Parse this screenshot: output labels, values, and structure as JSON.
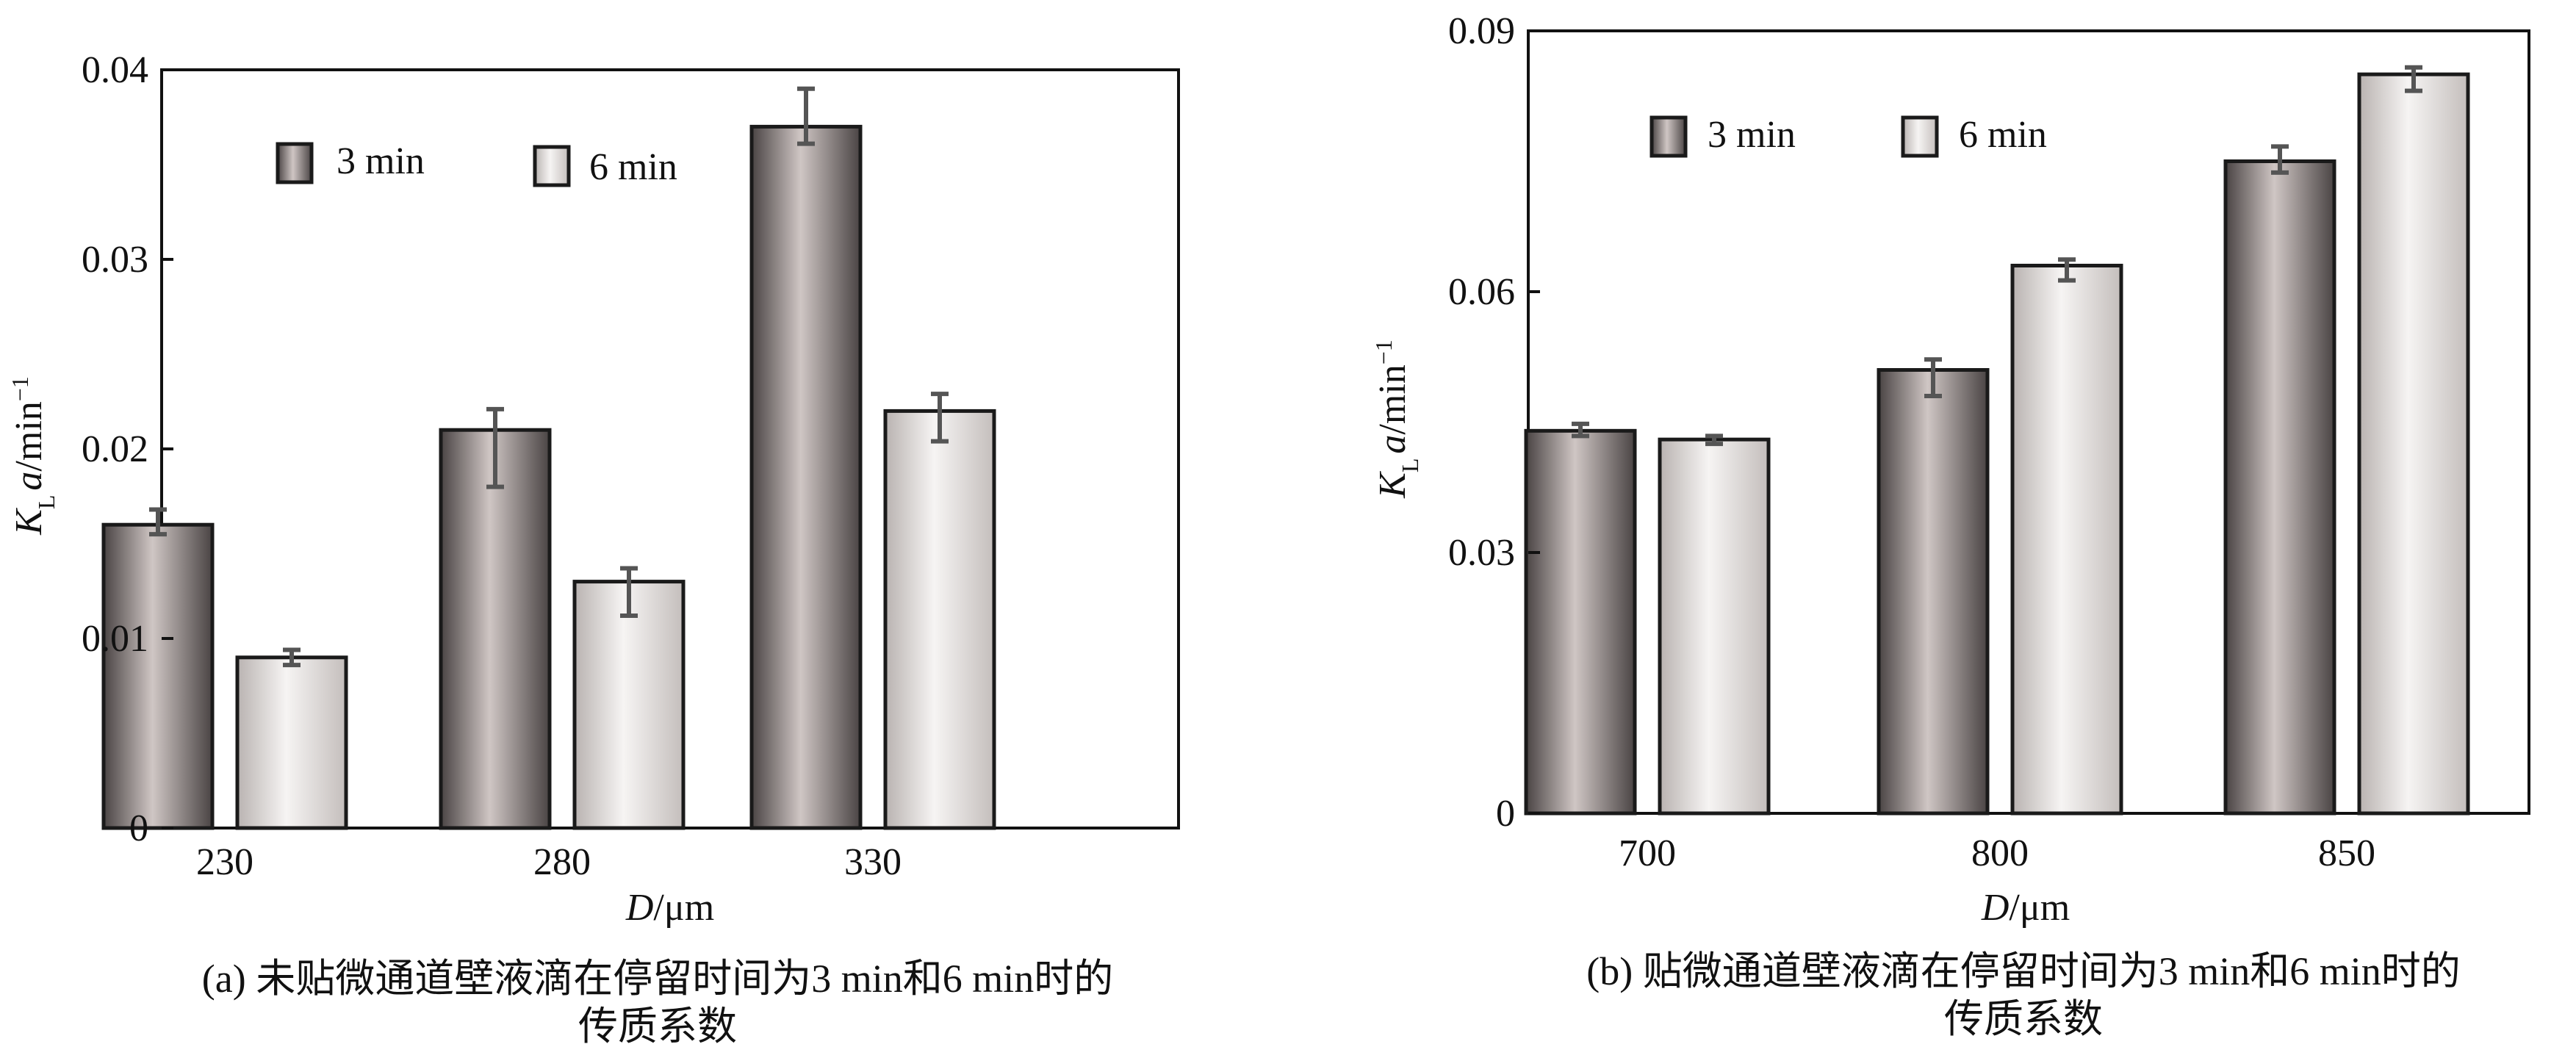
{
  "chart_data": [
    {
      "type": "bar",
      "caption_line1": "(a) 未贴微通道壁液滴在停留时间为3 min和6 min时的",
      "caption_line2": "传质系数",
      "xlabel": {
        "var": "D",
        "unit": "/μm"
      },
      "ylabel": {
        "var": "K",
        "sub": "L",
        "var2": "a",
        "unit": "/min",
        "sup": "−1"
      },
      "categories": [
        "230",
        "280",
        "330"
      ],
      "ylim": [
        0,
        0.04
      ],
      "yticks": [
        0,
        0.01,
        0.02,
        0.03,
        0.04
      ],
      "ytick_labels": [
        "0",
        "0.01",
        "0.02",
        "0.03",
        "0.04"
      ],
      "grid": false,
      "legend_position": "top-left",
      "series": [
        {
          "name": "3 min",
          "values": [
            0.016,
            0.021,
            0.037
          ],
          "err_low": [
            0.0005,
            0.003,
            0.0009
          ],
          "err_high": [
            0.0008,
            0.0011,
            0.002
          ],
          "color": "dark-gray"
        },
        {
          "name": "6 min",
          "values": [
            0.009,
            0.013,
            0.022
          ],
          "err_low": [
            0.0004,
            0.0018,
            0.0016
          ],
          "err_high": [
            0.0004,
            0.0007,
            0.0009
          ],
          "color": "light-gray"
        }
      ]
    },
    {
      "type": "bar",
      "caption_line1": "(b) 贴微通道壁液滴在停留时间为3 min和6 min时的",
      "caption_line2": "传质系数",
      "xlabel": {
        "var": "D",
        "unit": "/μm"
      },
      "ylabel": {
        "var": "K",
        "sub": "L",
        "var2": "a",
        "unit": "/min",
        "sup": "−1"
      },
      "categories": [
        "700",
        "800",
        "850"
      ],
      "ylim": [
        0,
        0.09
      ],
      "yticks": [
        0,
        0.03,
        0.06,
        0.09
      ],
      "ytick_labels": [
        "0",
        "0.03",
        "0.06",
        "0.09"
      ],
      "grid": false,
      "legend_position": "top-left",
      "series": [
        {
          "name": "3 min",
          "values": [
            0.044,
            0.051,
            0.075
          ],
          "err_low": [
            0.0006,
            0.003,
            0.0013
          ],
          "err_high": [
            0.0008,
            0.0012,
            0.0017
          ],
          "color": "dark-gray"
        },
        {
          "name": "6 min",
          "values": [
            0.043,
            0.063,
            0.085
          ],
          "err_low": [
            0.0005,
            0.0017,
            0.0019
          ],
          "err_high": [
            0.0004,
            0.0007,
            0.0008
          ],
          "color": "light-gray"
        }
      ]
    }
  ],
  "colors": {
    "axis": "#111111",
    "bar_outline": "#1a1a1a",
    "error_bar": "#555555",
    "dark_bar_edge": "#4a4444",
    "dark_bar_mid": "#cfc6c4",
    "light_bar_edge": "#b9b3b1",
    "light_bar_mid": "#f6f4f3"
  }
}
